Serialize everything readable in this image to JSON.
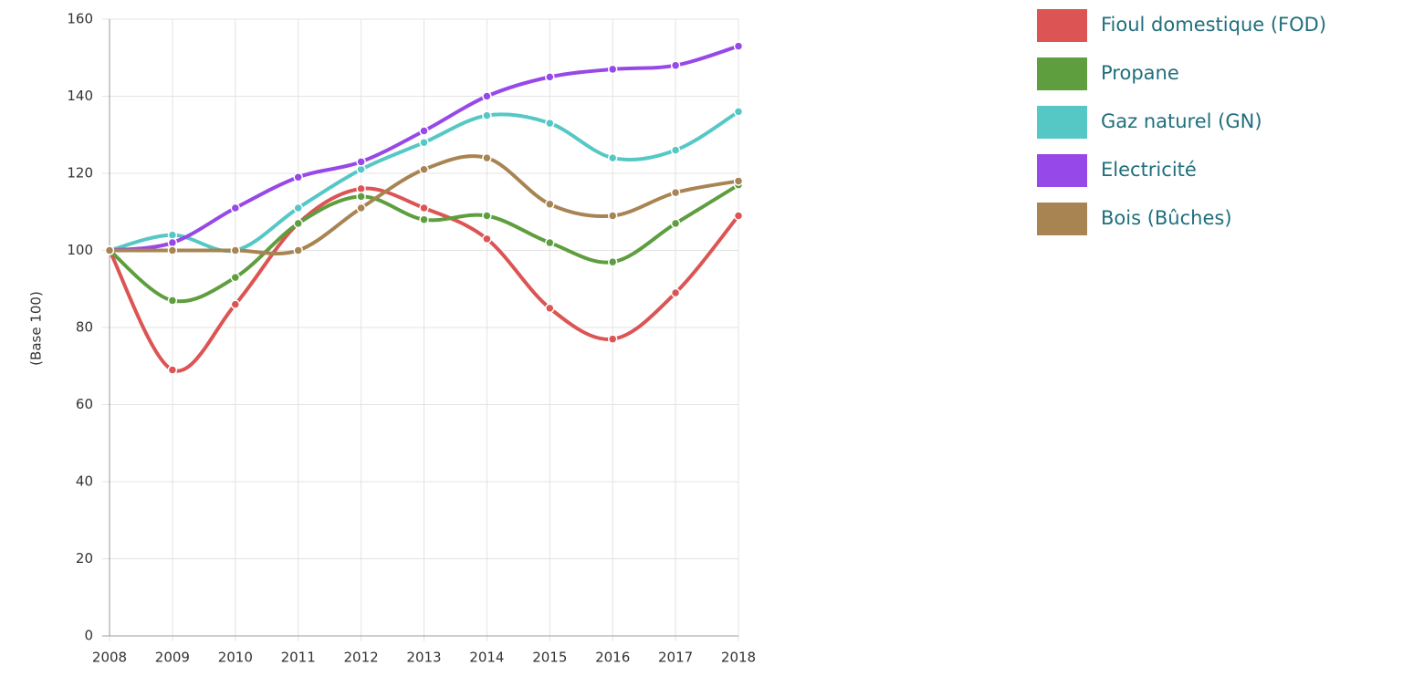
{
  "chart_data": {
    "type": "line",
    "y_label": "(Base 100)",
    "categories": [
      "2008",
      "2009",
      "2010",
      "2011",
      "2012",
      "2013",
      "2014",
      "2015",
      "2016",
      "2017",
      "2018"
    ],
    "series": [
      {
        "name": "Fioul domestique (FOD)",
        "color": "#dc5454",
        "values": [
          100,
          69,
          86,
          107,
          116,
          111,
          103,
          85,
          77,
          89,
          109
        ]
      },
      {
        "name": "Propane",
        "color": "#5e9e3e",
        "values": [
          100,
          87,
          93,
          107,
          114,
          108,
          109,
          102,
          97,
          107,
          117
        ]
      },
      {
        "name": "Gaz naturel (GN)",
        "color": "#55c8c6",
        "values": [
          100,
          104,
          100,
          111,
          121,
          128,
          135,
          133,
          124,
          126,
          136
        ]
      },
      {
        "name": "Electricité",
        "color": "#9748e8",
        "values": [
          100,
          102,
          111,
          119,
          123,
          131,
          140,
          145,
          147,
          148,
          153
        ]
      },
      {
        "name": "Bois (Bûches)",
        "color": "#a88452",
        "values": [
          100,
          100,
          100,
          100,
          111,
          121,
          124,
          112,
          109,
          115,
          118
        ]
      }
    ],
    "ylim": [
      0,
      160
    ],
    "yticks": [
      0,
      20,
      40,
      60,
      80,
      100,
      120,
      140,
      160
    ],
    "grid": true,
    "legend": "right"
  }
}
